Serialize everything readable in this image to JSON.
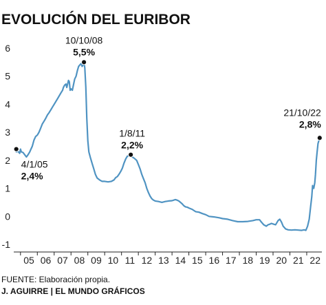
{
  "chart_data": {
    "type": "line",
    "title": "EVOLUCIÓN DEL EURIBOR",
    "xlabel": "",
    "ylabel": "",
    "ylim": [
      -1,
      6
    ],
    "xlim": [
      2004.6,
      2022.9
    ],
    "y_ticks": [
      "-1",
      "0",
      "1",
      "2",
      "3",
      "4",
      "5",
      "6"
    ],
    "x_ticks": [
      {
        "label": "05",
        "x": 2005.5
      },
      {
        "label": "06",
        "x": 2006.5
      },
      {
        "label": "07",
        "x": 2007.5
      },
      {
        "label": "08",
        "x": 2008.5
      },
      {
        "label": "09",
        "x": 2009.5
      },
      {
        "label": "10",
        "x": 2010.5
      },
      {
        "label": "11",
        "x": 2011.5
      },
      {
        "label": "12",
        "x": 2012.5
      },
      {
        "label": "13",
        "x": 2013.5
      },
      {
        "label": "14",
        "x": 2014.5
      },
      {
        "label": "15",
        "x": 2015.5
      },
      {
        "label": "16",
        "x": 2016.5
      },
      {
        "label": "17",
        "x": 2017.5
      },
      {
        "label": "18",
        "x": 2018.5
      },
      {
        "label": "19",
        "x": 2019.5
      },
      {
        "label": "20",
        "x": 2020.5
      },
      {
        "label": "21",
        "x": 2021.5
      },
      {
        "label": "22",
        "x": 2022.5
      }
    ],
    "grid": false,
    "line_color": "#4f93c2",
    "series": [
      {
        "points": [
          [
            2004.75,
            2.3
          ],
          [
            2004.85,
            2.32
          ],
          [
            2004.95,
            2.25
          ],
          [
            2005.0,
            2.4
          ],
          [
            2005.05,
            2.3
          ],
          [
            2005.15,
            2.28
          ],
          [
            2005.25,
            2.2
          ],
          [
            2005.35,
            2.12
          ],
          [
            2005.45,
            2.2
          ],
          [
            2005.55,
            2.3
          ],
          [
            2005.62,
            2.4
          ],
          [
            2005.7,
            2.5
          ],
          [
            2005.8,
            2.72
          ],
          [
            2005.9,
            2.85
          ],
          [
            2006.0,
            2.9
          ],
          [
            2006.1,
            3.0
          ],
          [
            2006.2,
            3.15
          ],
          [
            2006.3,
            3.3
          ],
          [
            2006.4,
            3.4
          ],
          [
            2006.5,
            3.5
          ],
          [
            2006.6,
            3.62
          ],
          [
            2006.7,
            3.7
          ],
          [
            2006.8,
            3.8
          ],
          [
            2006.9,
            3.9
          ],
          [
            2007.0,
            4.0
          ],
          [
            2007.1,
            4.1
          ],
          [
            2007.2,
            4.2
          ],
          [
            2007.3,
            4.3
          ],
          [
            2007.4,
            4.4
          ],
          [
            2007.5,
            4.5
          ],
          [
            2007.55,
            4.6
          ],
          [
            2007.62,
            4.68
          ],
          [
            2007.7,
            4.72
          ],
          [
            2007.75,
            4.6
          ],
          [
            2007.8,
            4.72
          ],
          [
            2007.85,
            4.85
          ],
          [
            2007.9,
            4.8
          ],
          [
            2007.95,
            4.5
          ],
          [
            2008.0,
            4.55
          ],
          [
            2008.08,
            4.5
          ],
          [
            2008.15,
            4.7
          ],
          [
            2008.22,
            4.9
          ],
          [
            2008.3,
            5.0
          ],
          [
            2008.38,
            5.2
          ],
          [
            2008.45,
            5.35
          ],
          [
            2008.52,
            5.4
          ],
          [
            2008.6,
            5.45
          ],
          [
            2008.66,
            5.35
          ],
          [
            2008.72,
            5.4
          ],
          [
            2008.77,
            5.5
          ],
          [
            2008.82,
            5.3
          ],
          [
            2008.88,
            4.6
          ],
          [
            2008.94,
            3.5
          ],
          [
            2009.0,
            2.7
          ],
          [
            2009.06,
            2.3
          ],
          [
            2009.15,
            2.1
          ],
          [
            2009.25,
            1.9
          ],
          [
            2009.35,
            1.7
          ],
          [
            2009.45,
            1.5
          ],
          [
            2009.55,
            1.37
          ],
          [
            2009.7,
            1.3
          ],
          [
            2009.85,
            1.25
          ],
          [
            2010.0,
            1.25
          ],
          [
            2010.2,
            1.23
          ],
          [
            2010.4,
            1.25
          ],
          [
            2010.55,
            1.3
          ],
          [
            2010.65,
            1.38
          ],
          [
            2010.75,
            1.42
          ],
          [
            2010.85,
            1.5
          ],
          [
            2010.95,
            1.6
          ],
          [
            2011.05,
            1.72
          ],
          [
            2011.15,
            1.9
          ],
          [
            2011.25,
            2.05
          ],
          [
            2011.35,
            2.15
          ],
          [
            2011.45,
            2.16
          ],
          [
            2011.55,
            2.2
          ],
          [
            2011.62,
            2.12
          ],
          [
            2011.7,
            2.1
          ],
          [
            2011.8,
            2.05
          ],
          [
            2011.9,
            2.0
          ],
          [
            2012.0,
            1.85
          ],
          [
            2012.1,
            1.7
          ],
          [
            2012.2,
            1.5
          ],
          [
            2012.3,
            1.35
          ],
          [
            2012.4,
            1.2
          ],
          [
            2012.5,
            1.0
          ],
          [
            2012.6,
            0.85
          ],
          [
            2012.7,
            0.72
          ],
          [
            2012.8,
            0.63
          ],
          [
            2012.9,
            0.58
          ],
          [
            2013.0,
            0.55
          ],
          [
            2013.2,
            0.53
          ],
          [
            2013.4,
            0.5
          ],
          [
            2013.6,
            0.53
          ],
          [
            2013.8,
            0.55
          ],
          [
            2014.0,
            0.56
          ],
          [
            2014.1,
            0.58
          ],
          [
            2014.2,
            0.6
          ],
          [
            2014.3,
            0.58
          ],
          [
            2014.4,
            0.55
          ],
          [
            2014.5,
            0.5
          ],
          [
            2014.6,
            0.45
          ],
          [
            2014.7,
            0.38
          ],
          [
            2014.8,
            0.34
          ],
          [
            2014.9,
            0.33
          ],
          [
            2015.0,
            0.3
          ],
          [
            2015.2,
            0.25
          ],
          [
            2015.4,
            0.17
          ],
          [
            2015.6,
            0.15
          ],
          [
            2015.8,
            0.1
          ],
          [
            2016.0,
            0.06
          ],
          [
            2016.2,
            0.0
          ],
          [
            2016.5,
            -0.02
          ],
          [
            2016.8,
            -0.05
          ],
          [
            2017.0,
            -0.08
          ],
          [
            2017.3,
            -0.1
          ],
          [
            2017.6,
            -0.15
          ],
          [
            2017.9,
            -0.19
          ],
          [
            2018.2,
            -0.19
          ],
          [
            2018.5,
            -0.18
          ],
          [
            2018.8,
            -0.15
          ],
          [
            2019.0,
            -0.12
          ],
          [
            2019.2,
            -0.12
          ],
          [
            2019.3,
            -0.2
          ],
          [
            2019.45,
            -0.3
          ],
          [
            2019.6,
            -0.35
          ],
          [
            2019.7,
            -0.3
          ],
          [
            2019.8,
            -0.28
          ],
          [
            2019.9,
            -0.25
          ],
          [
            2020.0,
            -0.27
          ],
          [
            2020.15,
            -0.3
          ],
          [
            2020.3,
            -0.15
          ],
          [
            2020.4,
            -0.1
          ],
          [
            2020.5,
            -0.2
          ],
          [
            2020.6,
            -0.35
          ],
          [
            2020.75,
            -0.45
          ],
          [
            2020.9,
            -0.48
          ],
          [
            2021.1,
            -0.49
          ],
          [
            2021.3,
            -0.48
          ],
          [
            2021.5,
            -0.49
          ],
          [
            2021.7,
            -0.5
          ],
          [
            2021.85,
            -0.48
          ],
          [
            2021.95,
            -0.5
          ],
          [
            2022.05,
            -0.35
          ],
          [
            2022.15,
            -0.1
          ],
          [
            2022.22,
            0.3
          ],
          [
            2022.3,
            0.7
          ],
          [
            2022.35,
            1.1
          ],
          [
            2022.42,
            1.0
          ],
          [
            2022.48,
            1.2
          ],
          [
            2022.52,
            1.5
          ],
          [
            2022.57,
            2.0
          ],
          [
            2022.62,
            2.3
          ],
          [
            2022.67,
            2.6
          ],
          [
            2022.72,
            2.7
          ],
          [
            2022.77,
            2.8
          ]
        ]
      }
    ],
    "annotations": [
      {
        "date": "4/1/05",
        "value": "2,4%",
        "x": 2004.75,
        "y": 2.4
      },
      {
        "date": "10/10/08",
        "value": "5,5%",
        "x": 2008.77,
        "y": 5.5
      },
      {
        "date": "1/8/11",
        "value": "2,2%",
        "x": 2011.55,
        "y": 2.2
      },
      {
        "date": "21/10/22",
        "value": "2,8%",
        "x": 2022.77,
        "y": 2.8
      }
    ]
  },
  "footer": {
    "source": "FUENTE: Elaboración propia.",
    "credit": "J. AGUIRRE | EL MUNDO GRÁFICOS"
  }
}
